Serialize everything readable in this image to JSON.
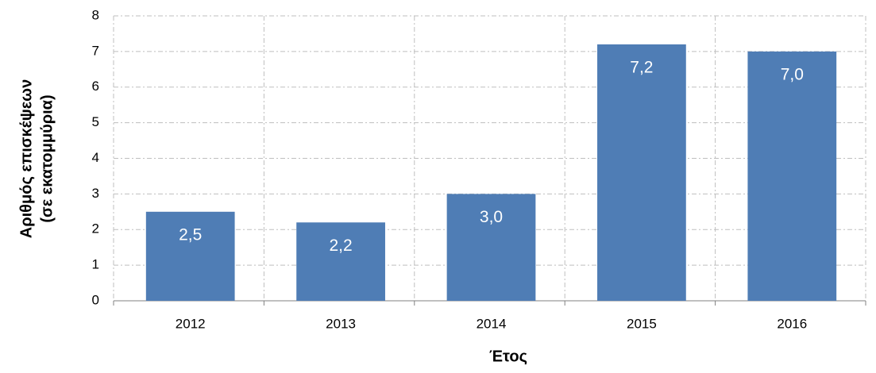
{
  "chart_data": {
    "type": "bar",
    "categories": [
      "2012",
      "2013",
      "2014",
      "2015",
      "2016"
    ],
    "values": [
      2.5,
      2.2,
      3.0,
      7.2,
      7.0
    ],
    "value_labels": [
      "2,5",
      "2,2",
      "3,0",
      "7,2",
      "7,0"
    ],
    "color": "#4f7db5",
    "x_label": "Έτος",
    "y_label": [
      "Αριθμός επισκέψεων",
      "(σε εκατομμύρια)"
    ],
    "ylim": [
      0,
      8
    ],
    "yticks": [
      0,
      1,
      2,
      3,
      4,
      5,
      6,
      7,
      8
    ],
    "grid": true
  }
}
